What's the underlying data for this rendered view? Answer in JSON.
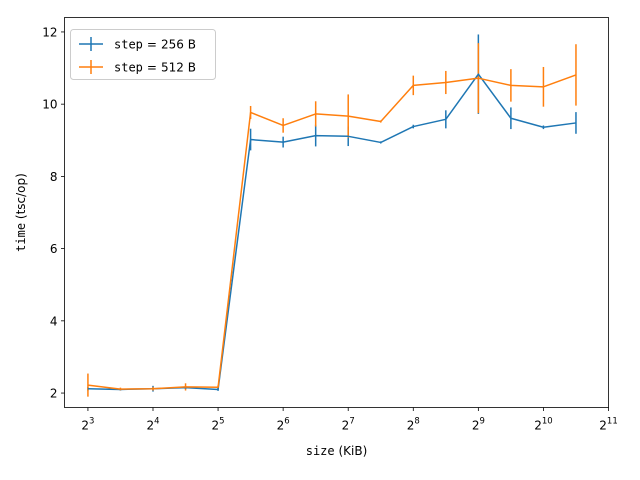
{
  "chart_data": {
    "type": "line",
    "title": "",
    "xlabel": {
      "code": "size",
      "unit": "(KiB)"
    },
    "ylabel": {
      "code": "time",
      "unit": "(tsc/op)"
    },
    "xscale": "log2",
    "xlim_log2": [
      2.64,
      11.0
    ],
    "ylim": [
      1.6,
      12.4
    ],
    "xticks": [
      {
        "base": "2",
        "exp": "3"
      },
      {
        "base": "2",
        "exp": "4"
      },
      {
        "base": "2",
        "exp": "5"
      },
      {
        "base": "2",
        "exp": "6"
      },
      {
        "base": "2",
        "exp": "7"
      },
      {
        "base": "2",
        "exp": "8"
      },
      {
        "base": "2",
        "exp": "9"
      },
      {
        "base": "2",
        "exp": "10"
      },
      {
        "base": "2",
        "exp": "11"
      }
    ],
    "yticks": [
      2,
      4,
      6,
      8,
      10,
      12
    ],
    "grid": false,
    "legend": {
      "placement": "top-left"
    },
    "series": [
      {
        "name": {
          "code": "step",
          "op": "=",
          "value": "256 B"
        },
        "color": "#1f77b4",
        "points": [
          {
            "x": 8,
            "y": 2.12,
            "err": 0.05
          },
          {
            "x": 11.31,
            "y": 2.1,
            "err": 0.03
          },
          {
            "x": 16,
            "y": 2.12,
            "err": 0.08
          },
          {
            "x": 22.63,
            "y": 2.15,
            "err": 0.04
          },
          {
            "x": 32,
            "y": 2.1,
            "err": 0.04
          },
          {
            "x": 45.25,
            "y": 9.02,
            "err": 0.3
          },
          {
            "x": 64,
            "y": 8.95,
            "err": 0.15
          },
          {
            "x": 90.51,
            "y": 9.13,
            "err": 0.3
          },
          {
            "x": 128,
            "y": 9.11,
            "err": 0.27
          },
          {
            "x": 181.02,
            "y": 8.94,
            "err": 0.03
          },
          {
            "x": 256,
            "y": 9.38,
            "err": 0.05
          },
          {
            "x": 362.04,
            "y": 9.58,
            "err": 0.25
          },
          {
            "x": 512,
            "y": 10.83,
            "err": 1.1
          },
          {
            "x": 724.08,
            "y": 9.61,
            "err": 0.3
          },
          {
            "x": 1024,
            "y": 9.36,
            "err": 0.05
          },
          {
            "x": 1448.15,
            "y": 9.48,
            "err": 0.3
          }
        ]
      },
      {
        "name": {
          "code": "step",
          "op": "=",
          "value": "512 B"
        },
        "color": "#ff7f0e",
        "points": [
          {
            "x": 8,
            "y": 2.22,
            "err": 0.32
          },
          {
            "x": 11.31,
            "y": 2.11,
            "err": 0.04
          },
          {
            "x": 16,
            "y": 2.12,
            "err": 0.05
          },
          {
            "x": 22.63,
            "y": 2.17,
            "err": 0.1
          },
          {
            "x": 32,
            "y": 2.16,
            "err": 0.05
          },
          {
            "x": 45.25,
            "y": 9.77,
            "err": 0.18
          },
          {
            "x": 64,
            "y": 9.41,
            "err": 0.2
          },
          {
            "x": 90.51,
            "y": 9.73,
            "err": 0.35
          },
          {
            "x": 128,
            "y": 9.67,
            "err": 0.6
          },
          {
            "x": 181.02,
            "y": 9.52,
            "err": 0.03
          },
          {
            "x": 256,
            "y": 10.52,
            "err": 0.27
          },
          {
            "x": 362.04,
            "y": 10.6,
            "err": 0.32
          },
          {
            "x": 512,
            "y": 10.72,
            "err": 0.97
          },
          {
            "x": 724.08,
            "y": 10.52,
            "err": 0.45
          },
          {
            "x": 1024,
            "y": 10.48,
            "err": 0.55
          },
          {
            "x": 1448.15,
            "y": 10.81,
            "err": 0.85
          }
        ]
      }
    ]
  }
}
